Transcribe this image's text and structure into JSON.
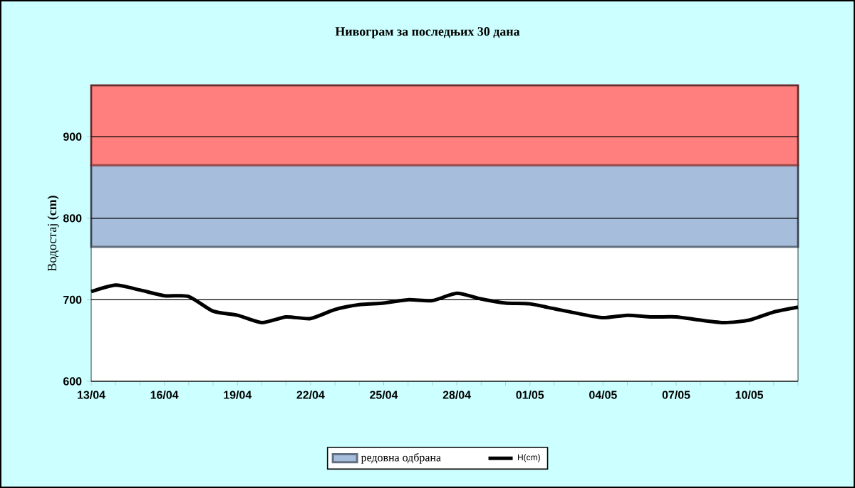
{
  "chart_data": {
    "type": "line",
    "title": "Нивограм за последњих 30 дана",
    "ylabel": "Водостај **(cm)**",
    "categories": [
      "13/04",
      null,
      null,
      "16/04",
      null,
      null,
      "19/04",
      null,
      null,
      "22/04",
      null,
      null,
      "25/04",
      null,
      null,
      "28/04",
      null,
      null,
      "01/05",
      null,
      null,
      "04/05",
      null,
      null,
      "07/05",
      null,
      null,
      "10/05",
      null,
      null
    ],
    "series": [
      {
        "name": "H(cm)",
        "color": "#000000",
        "values": [
          710,
          718,
          712,
          705,
          704,
          686,
          681,
          672,
          679,
          677,
          688,
          694,
          696,
          700,
          699,
          708,
          701,
          696,
          695,
          689,
          683,
          678,
          681,
          679,
          679,
          675,
          672,
          675,
          685,
          691
        ]
      }
    ],
    "ylim": [
      600,
      963
    ],
    "yticks": [
      600,
      700,
      800,
      900
    ],
    "grid": "y",
    "legend": "bottom",
    "marker": "none",
    "line_style": "solid",
    "bands": [
      {
        "axis": "y",
        "from": 765,
        "to": 865,
        "label": "редовна одбрана",
        "color": "#a6bddb"
      },
      {
        "axis": "y",
        "from": 865,
        "to": 963,
        "color": "#ff7f7f"
      }
    ]
  }
}
